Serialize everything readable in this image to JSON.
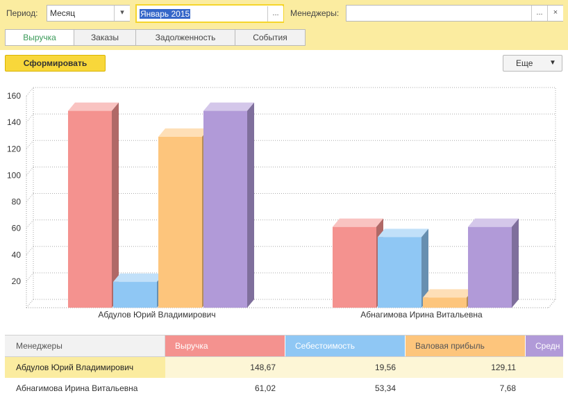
{
  "filters": {
    "period_label": "Период:",
    "period_value": "Месяц",
    "month_value": "Январь 2015",
    "managers_label": "Менеджеры:",
    "managers_value": "",
    "ellipsis": "...",
    "clear": "×"
  },
  "tabs": [
    {
      "label": "Выручка",
      "active": true
    },
    {
      "label": "Заказы",
      "active": false
    },
    {
      "label": "Задолженность",
      "active": false
    },
    {
      "label": "События",
      "active": false
    }
  ],
  "toolbar": {
    "generate_label": "Сформировать",
    "more_label": "Еще"
  },
  "chart_data": {
    "type": "bar",
    "categories": [
      "Абдулов Юрий Владимирович",
      "Абнагимова Ирина Витальевна"
    ],
    "series": [
      {
        "name": "Выручка",
        "color": "#f4928f",
        "values": [
          148.67,
          61.02
        ]
      },
      {
        "name": "Себестоимость",
        "color": "#8fc7f4",
        "values": [
          19.56,
          53.34
        ]
      },
      {
        "name": "Валовая прибыль",
        "color": "#fdc57c",
        "values": [
          129.11,
          7.68
        ]
      },
      {
        "name": "Средн",
        "color": "#b19ad8",
        "values": [
          148.67,
          61.02
        ]
      }
    ],
    "yticks": [
      "20",
      "40",
      "60",
      "80",
      "100",
      "120",
      "140",
      "160"
    ],
    "ylim": [
      0,
      160
    ],
    "grid": true
  },
  "table": {
    "headers": [
      {
        "label": "Менеджеры",
        "color": "#f2f2f2",
        "text": "#555555"
      },
      {
        "label": "Выручка",
        "color": "#f4928f",
        "text": "#ffffff"
      },
      {
        "label": "Себестоимость",
        "color": "#8fc7f4",
        "text": "#ffffff"
      },
      {
        "label": "Валовая прибыль",
        "color": "#fdc57c",
        "text": "#555555"
      },
      {
        "label": "Средн",
        "color": "#b19ad8",
        "text": "#ffffff"
      }
    ],
    "rows": [
      {
        "manager": "Абдулов Юрий Владимирович",
        "revenue": "148,67",
        "cost": "19,56",
        "profit": "129,11",
        "selected": true
      },
      {
        "manager": "Абнагимова Ирина Витальевна",
        "revenue": "61,02",
        "cost": "53,34",
        "profit": "7,68",
        "selected": false
      }
    ]
  }
}
